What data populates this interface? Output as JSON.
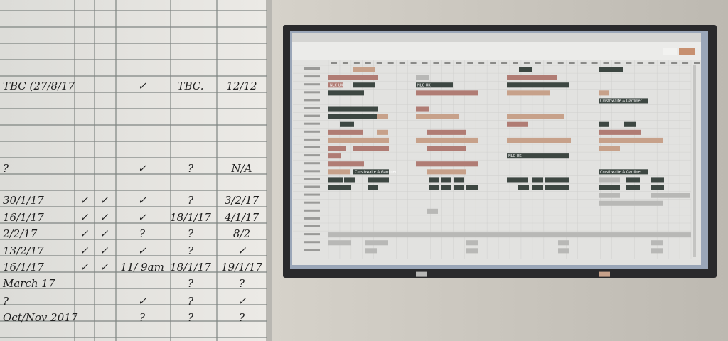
{
  "whiteboard": {
    "rows": [
      [
        "TBC (27/8/17",
        null,
        null,
        "✓",
        "TBC.",
        "12/12"
      ],
      [
        "?",
        null,
        null,
        "✓",
        "?",
        "N/A"
      ],
      [
        "30/1/17",
        "✓",
        "✓",
        "✓",
        "?",
        "3/2/17"
      ],
      [
        "16/1/17",
        "✓",
        "✓",
        "✓",
        "18/1/17",
        "4/1/17"
      ],
      [
        "2/2/17",
        "✓",
        "✓",
        "?",
        "?",
        "8/2"
      ],
      [
        "13/2/17",
        "✓",
        "✓",
        "✓",
        "?",
        "✓"
      ],
      [
        "16/1/17",
        "✓",
        "✓",
        "11/ 9am",
        "18/1/17",
        "19/1/17"
      ],
      [
        "March 17",
        null,
        null,
        null,
        "?",
        "?"
      ],
      [
        "?",
        null,
        null,
        "✓",
        "?",
        "✓"
      ],
      [
        "Oct/Nov 2017",
        null,
        null,
        "?",
        "?",
        "?"
      ]
    ]
  },
  "screen": {
    "labels": [
      "NLC UK",
      "NLC UK",
      "NLC UK",
      "Crosthwaite & Gardiner",
      "Crosthwaite & Gardiner",
      "Crosthwaite & Gardiner"
    ]
  }
}
